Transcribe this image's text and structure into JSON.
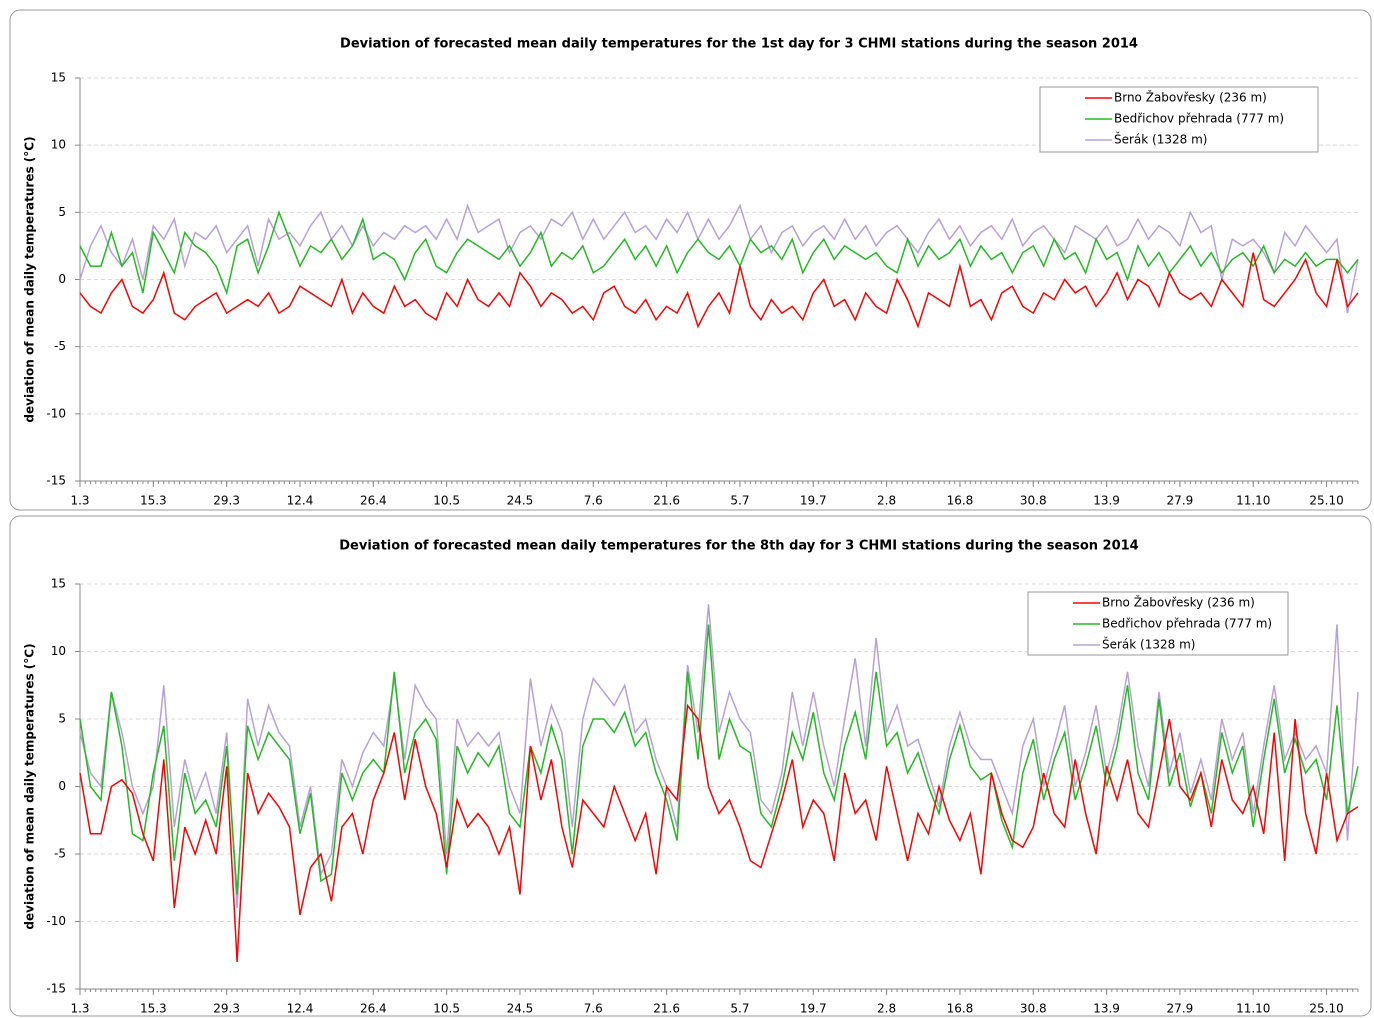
{
  "chart_data": [
    {
      "type": "line",
      "title": "Deviation of forecasted mean daily temperatures for the 1st day for 3 CHMI stations during the season 2014",
      "y_label": "deviation of mean daily temperatures (°C)",
      "categories": [
        "1.3",
        null,
        null,
        null,
        null,
        null,
        null,
        "15.3",
        null,
        null,
        null,
        null,
        null,
        null,
        "29.3",
        null,
        null,
        null,
        null,
        null,
        null,
        "12.4",
        null,
        null,
        null,
        null,
        null,
        null,
        "26.4",
        null,
        null,
        null,
        null,
        null,
        null,
        "10.5",
        null,
        null,
        null,
        null,
        null,
        null,
        "24.5",
        null,
        null,
        null,
        null,
        null,
        null,
        "7.6",
        null,
        null,
        null,
        null,
        null,
        null,
        "21.6",
        null,
        null,
        null,
        null,
        null,
        null,
        "5.7",
        null,
        null,
        null,
        null,
        null,
        null,
        "19.7",
        null,
        null,
        null,
        null,
        null,
        null,
        "2.8",
        null,
        null,
        null,
        null,
        null,
        null,
        "16.8",
        null,
        null,
        null,
        null,
        null,
        null,
        "30.8",
        null,
        null,
        null,
        null,
        null,
        null,
        "13.9",
        null,
        null,
        null,
        null,
        null,
        null,
        "27.9",
        null,
        null,
        null,
        null,
        null,
        null,
        "11.10",
        null,
        null,
        null,
        null,
        null,
        null,
        "25.10",
        null,
        null,
        null
      ],
      "series": [
        {
          "name": "Brno Žabovřesky (236 m)",
          "color": "#ff0000",
          "values": [
            -1,
            -2,
            -2.5,
            -1,
            0,
            -2,
            -2.5,
            -1.5,
            0.5,
            -2.5,
            -3,
            -2,
            -1.5,
            -1,
            -2.5,
            -2,
            -1.5,
            -2,
            -1,
            -2.5,
            -2,
            -0.5,
            -1,
            -1.5,
            -2,
            0,
            -2.5,
            -1,
            -2,
            -2.5,
            -0.5,
            -2,
            -1.5,
            -2.5,
            -3,
            -1,
            -2,
            0,
            -1.5,
            -2,
            -1,
            -2,
            0.5,
            -0.5,
            -2,
            -1,
            -1.5,
            -2.5,
            -2,
            -3,
            -1,
            -0.5,
            -2,
            -2.5,
            -1.5,
            -3,
            -2,
            -2.5,
            -1,
            -3.5,
            -2,
            -1,
            -2.5,
            1,
            -2,
            -3,
            -1.5,
            -2.5,
            -2,
            -3,
            -1,
            0,
            -2,
            -1.5,
            -3,
            -1,
            -2,
            -2.5,
            0,
            -1.5,
            -3.5,
            -1,
            -1.5,
            -2,
            1,
            -2,
            -1.5,
            -3,
            -1,
            -0.5,
            -2,
            -2.5,
            -1,
            -1.5,
            0,
            -1,
            -0.5,
            -2,
            -1,
            0.5,
            -1.5,
            0,
            -0.5,
            -2,
            0.5,
            -1,
            -1.5,
            -1,
            -2,
            0,
            -1,
            -2,
            2,
            -1.5,
            -2,
            -1,
            0,
            1.5,
            -1,
            -2,
            1.5,
            -2,
            -1
          ]
        },
        {
          "name": "Bedřichov přehrada (777 m)",
          "color": "#22bb22",
          "values": [
            2.5,
            1,
            1,
            3.5,
            1,
            2,
            -1,
            3.5,
            2,
            0.5,
            3.5,
            2.5,
            2,
            1,
            -1,
            2.5,
            3,
            0.5,
            2.5,
            5,
            3,
            1,
            2.5,
            2,
            3,
            1.5,
            2.5,
            4.5,
            1.5,
            2,
            1.5,
            0,
            2,
            3,
            1,
            0.5,
            2,
            3,
            2.5,
            2,
            1.5,
            2.5,
            1,
            2,
            3.5,
            1,
            2,
            1.5,
            2.5,
            0.5,
            1,
            2,
            3,
            1.5,
            2.5,
            1,
            2.5,
            0.5,
            2,
            3,
            2,
            1.5,
            2.5,
            1,
            3,
            2,
            2.5,
            1.5,
            3,
            0.5,
            2,
            3,
            1.5,
            2.5,
            2,
            1.5,
            2,
            1,
            0.5,
            3,
            1,
            2.5,
            1.5,
            2,
            3,
            1,
            2.5,
            1.5,
            2,
            0.5,
            2,
            2.5,
            1,
            3,
            1.5,
            2,
            0.5,
            3,
            1.5,
            2,
            0,
            2.5,
            1,
            2,
            0.5,
            1.5,
            2.5,
            1,
            2,
            0.5,
            1.5,
            2,
            1,
            2.5,
            0.5,
            1.5,
            1,
            2,
            1,
            1.5,
            1.5,
            0.5,
            1.5
          ]
        },
        {
          "name": "Šerák (1328 m)",
          "color": "#b9a0d8",
          "values": [
            0,
            2.5,
            4,
            2,
            1,
            3,
            0,
            4,
            3,
            4.5,
            1,
            3.5,
            3,
            4,
            2,
            3,
            4,
            1,
            4.5,
            3,
            3.5,
            2.5,
            4,
            5,
            3,
            4,
            2.5,
            4,
            2.5,
            3.5,
            3,
            4,
            3.5,
            4,
            3,
            4.5,
            3,
            5.5,
            3.5,
            4,
            4.5,
            2,
            3.5,
            4,
            3,
            4.5,
            4,
            5,
            3,
            4.5,
            3,
            4,
            5,
            3.5,
            4,
            3,
            4.5,
            3.5,
            5,
            3,
            4.5,
            3,
            4,
            5.5,
            3,
            4,
            2,
            3.5,
            4,
            2.5,
            3.5,
            4,
            3,
            4.5,
            3,
            4,
            2.5,
            3.5,
            4,
            3,
            2,
            3.5,
            4.5,
            3,
            4,
            2.5,
            3.5,
            4,
            3,
            4.5,
            2.5,
            3.5,
            4,
            3,
            2,
            4,
            3.5,
            3,
            4,
            2.5,
            3,
            4.5,
            3,
            4,
            3.5,
            2.5,
            5,
            3.5,
            4,
            0,
            3,
            2.5,
            3,
            2,
            0.5,
            3.5,
            2.5,
            4,
            3,
            2,
            3,
            -2.5,
            1.5
          ]
        }
      ],
      "ylim": [
        -15,
        15
      ],
      "yticks": [
        -15,
        -10,
        -5,
        0,
        5,
        10,
        15
      ],
      "grid": true,
      "legend": "upper right"
    },
    {
      "type": "line",
      "title": "Deviation of forecasted mean daily temperatures for the 8th day for 3 CHMI stations during the season 2014",
      "y_label": "deviation of mean daily temperatures (°C)",
      "categories": [
        "1.3",
        null,
        null,
        null,
        null,
        null,
        null,
        "15.3",
        null,
        null,
        null,
        null,
        null,
        null,
        "29.3",
        null,
        null,
        null,
        null,
        null,
        null,
        "12.4",
        null,
        null,
        null,
        null,
        null,
        null,
        "26.4",
        null,
        null,
        null,
        null,
        null,
        null,
        "10.5",
        null,
        null,
        null,
        null,
        null,
        null,
        "24.5",
        null,
        null,
        null,
        null,
        null,
        null,
        "7.6",
        null,
        null,
        null,
        null,
        null,
        null,
        "21.6",
        null,
        null,
        null,
        null,
        null,
        null,
        "5.7",
        null,
        null,
        null,
        null,
        null,
        null,
        "19.7",
        null,
        null,
        null,
        null,
        null,
        null,
        "2.8",
        null,
        null,
        null,
        null,
        null,
        null,
        "16.8",
        null,
        null,
        null,
        null,
        null,
        null,
        "30.8",
        null,
        null,
        null,
        null,
        null,
        null,
        "13.9",
        null,
        null,
        null,
        null,
        null,
        null,
        "27.9",
        null,
        null,
        null,
        null,
        null,
        null,
        "11.10",
        null,
        null,
        null,
        null,
        null,
        null,
        "25.10",
        null,
        null,
        null
      ],
      "series": [
        {
          "name": "Brno Žabovřesky (236 m)",
          "color": "#ff0000",
          "values": [
            1,
            -3.5,
            -3.5,
            0,
            0.5,
            -0.5,
            -3.5,
            -5.5,
            2,
            -9,
            -3,
            -5,
            -2.5,
            -5,
            1.5,
            -13,
            1,
            -2,
            -0.5,
            -1.5,
            -3,
            -9.5,
            -6,
            -5,
            -8.5,
            -3,
            -2,
            -5,
            -1,
            1,
            4,
            -1,
            3.5,
            0,
            -2,
            -6,
            -1,
            -3,
            -2,
            -3,
            -5,
            -3,
            -8,
            3,
            -1,
            2,
            -3,
            -6,
            -1,
            -2,
            -3,
            0,
            -2,
            -4,
            -2,
            -6.5,
            0,
            -1,
            6,
            5,
            0,
            -2,
            -1,
            -3,
            -5.5,
            -6,
            -3.5,
            -1,
            2,
            -3,
            -1,
            -2,
            -5.5,
            1,
            -2,
            -1,
            -4,
            1.5,
            -2,
            -5.5,
            -2,
            -3.5,
            0,
            -2.5,
            -4,
            -2,
            -6.5,
            1,
            -2,
            -4,
            -4.5,
            -3,
            1,
            -2,
            -3,
            2,
            -2,
            -5,
            1.5,
            -1,
            2,
            -2,
            -3,
            1,
            5,
            0,
            -1,
            1,
            -3,
            2,
            -1,
            -2,
            0,
            -3.5,
            4,
            -5.5,
            5,
            -2,
            -5,
            1,
            -4,
            -2,
            -1.5
          ]
        },
        {
          "name": "Bedřichov přehrada (777 m)",
          "color": "#22bb22",
          "values": [
            5,
            0,
            -1,
            7,
            3,
            -3.5,
            -4,
            1,
            4.5,
            -5.5,
            1,
            -2,
            -1,
            -3,
            3,
            -8,
            4.5,
            2,
            4,
            3,
            2,
            -3.5,
            -0.5,
            -7,
            -6.5,
            1,
            -1,
            1,
            2,
            1,
            8.5,
            1,
            4,
            5,
            3.5,
            -6.5,
            3,
            1,
            2.5,
            1.5,
            3,
            -2,
            -3,
            3,
            1,
            4.5,
            2,
            -5,
            3,
            5,
            5,
            4,
            5.5,
            3,
            4,
            1,
            -1,
            -4,
            8.5,
            2,
            12,
            2,
            5,
            3,
            2.5,
            -2,
            -3,
            0,
            4,
            2,
            5.5,
            1,
            -1,
            3,
            5.5,
            2,
            8.5,
            3,
            4,
            1,
            2.5,
            0,
            -2,
            2,
            4.5,
            1.5,
            0.5,
            1,
            -2.5,
            -4.5,
            1,
            3.5,
            -1,
            2,
            4,
            -1,
            1.5,
            4.5,
            0,
            3,
            7.5,
            1,
            -1,
            6.5,
            0,
            2.5,
            -1.5,
            1,
            -2,
            4,
            1,
            3,
            -3,
            2,
            6.5,
            1,
            3.5,
            1,
            2,
            -1,
            6,
            -2,
            1.5
          ]
        },
        {
          "name": "Šerák (1328 m)",
          "color": "#b9a0d8",
          "values": [
            4,
            1,
            0,
            7,
            4,
            0,
            -2,
            0,
            7.5,
            -3,
            2,
            -1,
            1,
            -2,
            4,
            -9,
            6.5,
            3,
            6,
            4,
            3,
            -3,
            0,
            -6.5,
            -5,
            2,
            0,
            2.5,
            4,
            3,
            8,
            2,
            7.5,
            6,
            5,
            -5,
            5,
            3,
            4,
            3,
            4,
            0,
            -2,
            8,
            3,
            6,
            4,
            -3,
            5,
            8,
            7,
            6,
            7.5,
            4,
            5,
            2,
            0,
            -3,
            9,
            4,
            13.5,
            4,
            7,
            5,
            4,
            -1,
            -2,
            1,
            7,
            3,
            7,
            3,
            0,
            5,
            9.5,
            3,
            11,
            4,
            6,
            3,
            3.5,
            1,
            -1.5,
            3,
            5.5,
            3,
            2,
            2,
            0,
            -2,
            3,
            5,
            0,
            3,
            6,
            0,
            2.5,
            6,
            1,
            4,
            8.5,
            3,
            0,
            7,
            1,
            4,
            -0.5,
            2,
            -1,
            5,
            2,
            4,
            -2,
            3,
            7.5,
            2,
            4,
            2,
            3,
            1,
            12,
            -4,
            7
          ]
        }
      ],
      "ylim": [
        -15,
        15
      ],
      "yticks": [
        -15,
        -10,
        -5,
        0,
        5,
        10,
        15
      ],
      "grid": true,
      "legend": "upper right"
    }
  ]
}
